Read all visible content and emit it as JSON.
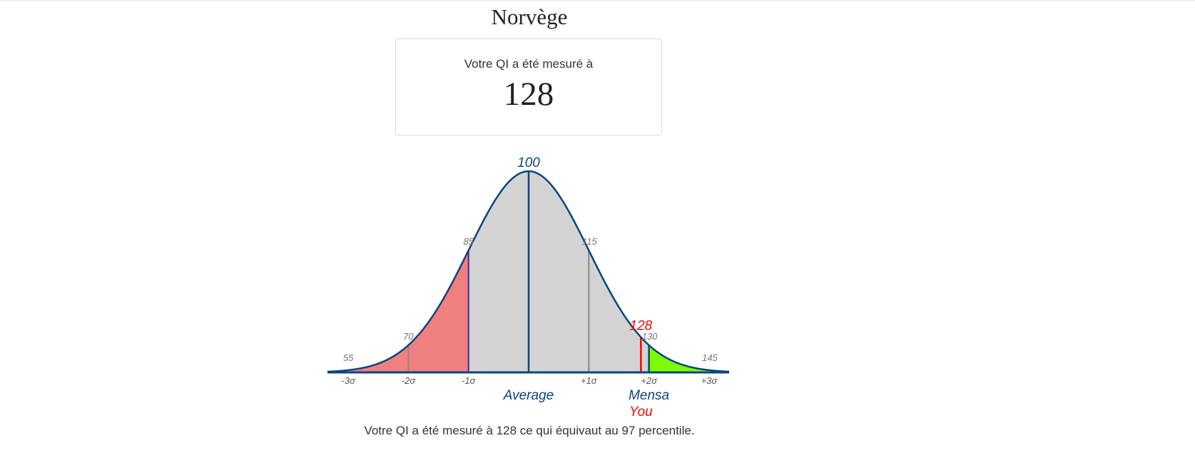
{
  "page": {
    "title": "Norvège",
    "result_label": "Votre QI a été mesuré à",
    "result_value": "128",
    "summary": "Votre QI a été mesuré à 128 ce qui équivaut au 97 percentile."
  },
  "chart_data": {
    "type": "area",
    "distribution": "normal",
    "mean": 100,
    "sd": 15,
    "xlim": [
      55,
      145
    ],
    "x_ticks": [
      {
        "value": 55,
        "sigma_label": "-3σ",
        "value_label": "55"
      },
      {
        "value": 70,
        "sigma_label": "-2σ",
        "value_label": "70"
      },
      {
        "value": 85,
        "sigma_label": "-1σ",
        "value_label": "85"
      },
      {
        "value": 100,
        "sigma_label": "",
        "value_label": "100"
      },
      {
        "value": 115,
        "sigma_label": "+1σ",
        "value_label": "115"
      },
      {
        "value": 130,
        "sigma_label": "+2σ",
        "value_label": "130"
      },
      {
        "value": 145,
        "sigma_label": "+3σ",
        "value_label": "145"
      }
    ],
    "regions": [
      {
        "from": 55,
        "to": 85,
        "color": "#f08080"
      },
      {
        "from": 85,
        "to": 130,
        "color": "#d3d3d3"
      },
      {
        "from": 130,
        "to": 145,
        "color": "#7cfc00"
      }
    ],
    "markers": [
      {
        "value": 100,
        "label": "Average",
        "color": "#0b4480"
      },
      {
        "value": 130,
        "label": "Mensa",
        "color": "#0b4480"
      },
      {
        "value": 128,
        "label": "You",
        "value_label": "128",
        "color": "#ff0000"
      }
    ],
    "colors": {
      "curve": "#0b4480",
      "grid_line": "#888888",
      "low_boundary": "#4b2a8a"
    }
  }
}
